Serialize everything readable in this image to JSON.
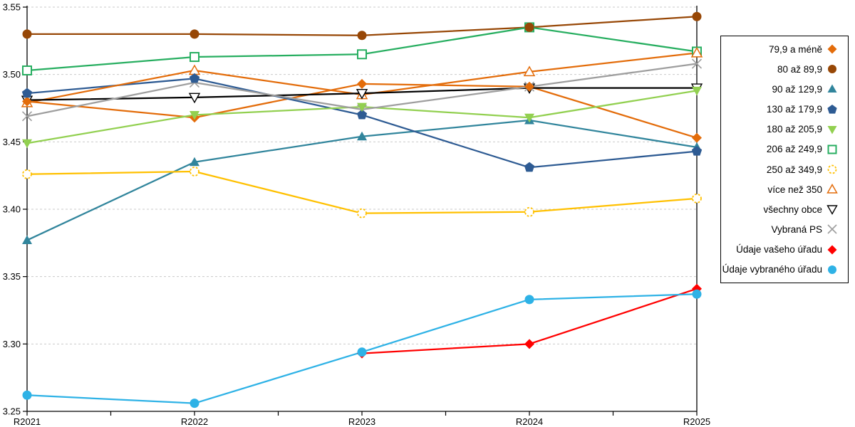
{
  "chart_data": {
    "type": "line",
    "categories": [
      "R2021",
      "R2022",
      "R2023",
      "R2024",
      "R2025"
    ],
    "ylim": [
      3.25,
      3.55
    ],
    "ytick_step": 0.05,
    "ytick_labels": [
      "3.55",
      "3.50",
      "3.45",
      "3.40",
      "3.35",
      "3.30",
      "3.25"
    ],
    "xlabel": "",
    "ylabel": "",
    "grid": "horizontal-dashed",
    "legend_position": "right",
    "series": [
      {
        "name": "79,9 a méně",
        "color": "#E36C0A",
        "marker": "diamond",
        "fill": "solid",
        "values": [
          3.48,
          3.468,
          3.493,
          3.491,
          3.453
        ]
      },
      {
        "name": "80 až 89,9",
        "color": "#974706",
        "marker": "circle",
        "fill": "solid",
        "values": [
          3.53,
          3.53,
          3.529,
          3.535,
          3.543
        ]
      },
      {
        "name": "90 až 129,9",
        "color": "#31859C",
        "marker": "triangle-up",
        "fill": "solid",
        "values": [
          3.377,
          3.435,
          3.454,
          3.466,
          3.446
        ]
      },
      {
        "name": "130 až 179,9",
        "color": "#2E5B93",
        "marker": "pentagon",
        "fill": "solid",
        "values": [
          3.486,
          3.497,
          3.47,
          3.431,
          3.443
        ]
      },
      {
        "name": "180 až 205,9",
        "color": "#92D050",
        "marker": "triangle-down",
        "fill": "solid",
        "values": [
          3.449,
          3.47,
          3.476,
          3.468,
          3.488
        ]
      },
      {
        "name": "206 až 249,9",
        "color": "#27AE60",
        "marker": "square",
        "fill": "open",
        "values": [
          3.503,
          3.513,
          3.515,
          3.535,
          3.517
        ]
      },
      {
        "name": "250 až 349,9",
        "color": "#FFC000",
        "marker": "circle-dashed",
        "fill": "open",
        "values": [
          3.426,
          3.428,
          3.397,
          3.398,
          3.408
        ]
      },
      {
        "name": "více než 350",
        "color": "#E36C0A",
        "marker": "triangle-up",
        "fill": "open",
        "values": [
          3.479,
          3.503,
          3.485,
          3.502,
          3.516
        ]
      },
      {
        "name": "všechny obce",
        "color": "#000000",
        "marker": "triangle-down",
        "fill": "open",
        "values": [
          3.481,
          3.483,
          3.486,
          3.49,
          3.49
        ]
      },
      {
        "name": "Vybraná PS",
        "color": "#9E9E9E",
        "marker": "x",
        "fill": "stroke",
        "values": [
          3.469,
          3.494,
          3.474,
          3.491,
          3.508
        ]
      },
      {
        "name": "Údaje vašeho úřadu",
        "color": "#FF0000",
        "marker": "diamond",
        "fill": "solid",
        "values": [
          null,
          null,
          3.293,
          3.3,
          3.341
        ]
      },
      {
        "name": "Údaje vybraného úřadu",
        "color": "#2EB2E6",
        "marker": "circle",
        "fill": "solid",
        "values": [
          3.262,
          3.256,
          3.294,
          3.333,
          3.337
        ]
      }
    ]
  },
  "colors": {
    "grid": "#C9C9C9",
    "axis": "#000000",
    "text": "#000000",
    "legend_border": "#000000",
    "background": "#FFFFFF"
  }
}
